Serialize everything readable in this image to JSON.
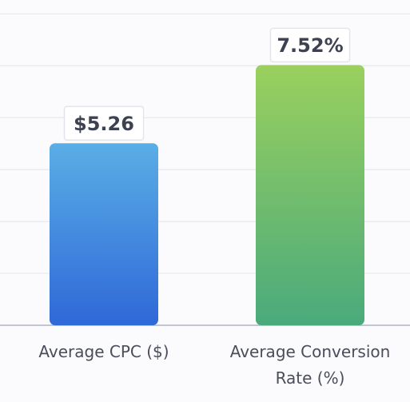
{
  "chart_data": {
    "type": "bar",
    "categories": [
      "Average CPC ($)",
      "Average Conversion Rate (%)"
    ],
    "category_lines": [
      [
        "Average CPC ($)"
      ],
      [
        "Average Conversion",
        "Rate (%)"
      ]
    ],
    "values": [
      5.26,
      7.52
    ],
    "value_labels": [
      "$5.26",
      "7.52%"
    ],
    "ylim": [
      0,
      9.4
    ],
    "grid": true,
    "colors": {
      "bar_1_top": "#5aaee6",
      "bar_1_bottom": "#2f68d8",
      "bar_2_top": "#9ad05e",
      "bar_2_bottom": "#4aaa7c"
    }
  }
}
